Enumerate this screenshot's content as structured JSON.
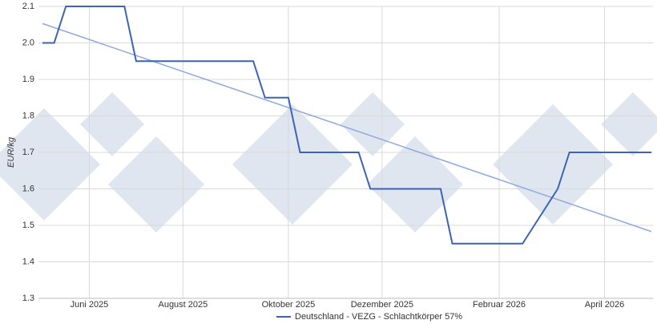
{
  "chart_data": {
    "type": "line",
    "y_label": "EUR/kg",
    "categories": [
      null,
      null,
      null,
      null,
      "Juni 2025",
      null,
      null,
      null,
      null,
      null,
      null,
      null,
      "August 2025",
      null,
      null,
      null,
      null,
      null,
      null,
      null,
      null,
      "Oktober 2025",
      null,
      null,
      null,
      null,
      null,
      null,
      null,
      "Dezember 2025",
      null,
      null,
      null,
      null,
      null,
      null,
      null,
      null,
      null,
      "Februar 2026",
      null,
      null,
      null,
      null,
      null,
      null,
      null,
      null,
      "April 2026",
      null,
      null,
      null,
      null
    ],
    "series": [
      {
        "name": "Deutschland - VEZG - Schlachtkörper 57%",
        "color": "#3b63b8",
        "values": [
          2.0,
          2.0,
          2.1,
          2.1,
          2.1,
          2.1,
          2.1,
          2.1,
          1.95,
          1.95,
          1.95,
          1.95,
          1.95,
          1.95,
          1.95,
          1.95,
          1.95,
          1.95,
          1.95,
          1.85,
          1.85,
          1.85,
          1.7,
          1.7,
          1.7,
          1.7,
          1.7,
          1.7,
          1.6,
          1.6,
          1.6,
          1.6,
          1.6,
          1.6,
          1.6,
          1.45,
          1.45,
          1.45,
          1.45,
          1.45,
          1.45,
          1.45,
          1.5,
          1.55,
          1.6,
          1.7,
          1.7,
          1.7,
          1.7,
          1.7,
          1.7,
          1.7,
          1.7
        ]
      }
    ],
    "trend": {
      "start": 2.053,
      "end": 1.483,
      "color": "#8ea9db"
    },
    "ylim": [
      1.3,
      2.1
    ],
    "yticks": [
      1.3,
      1.4,
      1.5,
      1.6,
      1.7,
      1.8,
      1.9,
      {
        "value": 2.0,
        "label": "2.0"
      },
      2.1
    ],
    "grid": true,
    "legend": "bottom"
  }
}
